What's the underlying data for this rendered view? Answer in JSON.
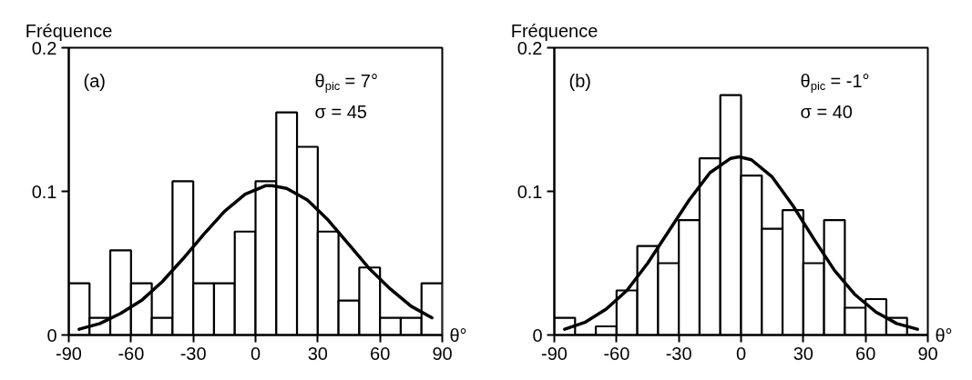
{
  "chart_data": [
    {
      "type": "histogram",
      "ylabel": "Fréquence",
      "xlabel": "θ°",
      "annotations": [
        "(a)",
        "θ$_{pic}$ = 7°",
        "σ = 45"
      ],
      "series": [
        {
          "color": "#ffffff",
          "bins": [
            -90,
            -80,
            -70,
            -60,
            -50,
            -40,
            -30,
            -20,
            -10,
            0,
            10,
            20,
            30,
            40,
            50,
            60,
            70,
            80,
            90
          ],
          "values": [
            0.036,
            0.012,
            0.059,
            0.036,
            0.012,
            0.107,
            0.036,
            0.036,
            0.072,
            0.107,
            0.155,
            0.131,
            0.072,
            0.024,
            0.047,
            0.012,
            0.012,
            0.036
          ]
        },
        {
          "type": "line",
          "color": "#000000",
          "x": [
            -85,
            -75,
            -65,
            -55,
            -45,
            -35,
            -25,
            -15,
            -5,
            5,
            8,
            15,
            25,
            35,
            45,
            55,
            65,
            75,
            85
          ],
          "values": [
            0.004,
            0.008,
            0.015,
            0.024,
            0.037,
            0.053,
            0.07,
            0.086,
            0.098,
            0.104,
            0.104,
            0.102,
            0.094,
            0.08,
            0.063,
            0.046,
            0.032,
            0.02,
            0.012
          ]
        }
      ],
      "xlim": [
        -90,
        90
      ],
      "xticks": [
        -90,
        -60,
        -30,
        0,
        30,
        60,
        90
      ],
      "ylim": [
        0,
        0.2
      ],
      "yticks": [
        0,
        0.1,
        0.2
      ],
      "grid": false
    },
    {
      "type": "histogram",
      "ylabel": "Fréquence",
      "xlabel": "θ°",
      "annotations": [
        "(b)",
        "θ$_{pic}$ = -1°",
        "σ = 40"
      ],
      "series": [
        {
          "color": "#ffffff",
          "bins": [
            -90,
            -80,
            -70,
            -60,
            -50,
            -40,
            -30,
            -20,
            -10,
            0,
            10,
            20,
            30,
            40,
            50,
            60,
            70,
            80,
            90
          ],
          "values": [
            0.012,
            0,
            0.006,
            0.031,
            0.062,
            0.05,
            0.08,
            0.123,
            0.167,
            0.111,
            0.074,
            0.087,
            0.05,
            0.08,
            0.019,
            0.025,
            0.012,
            0
          ]
        },
        {
          "type": "line",
          "color": "#000000",
          "x": [
            -85,
            -75,
            -65,
            -55,
            -45,
            -35,
            -25,
            -15,
            -5,
            -1,
            5,
            15,
            25,
            35,
            45,
            55,
            65,
            75,
            85
          ],
          "values": [
            0.004,
            0.009,
            0.018,
            0.031,
            0.05,
            0.072,
            0.094,
            0.113,
            0.123,
            0.124,
            0.122,
            0.11,
            0.09,
            0.067,
            0.045,
            0.028,
            0.016,
            0.008,
            0.004
          ]
        }
      ],
      "xlim": [
        -90,
        90
      ],
      "xticks": [
        -90,
        -60,
        -30,
        0,
        30,
        60,
        90
      ],
      "ylim": [
        0,
        0.2
      ],
      "yticks": [
        0,
        0.1,
        0.2
      ],
      "grid": false
    }
  ]
}
